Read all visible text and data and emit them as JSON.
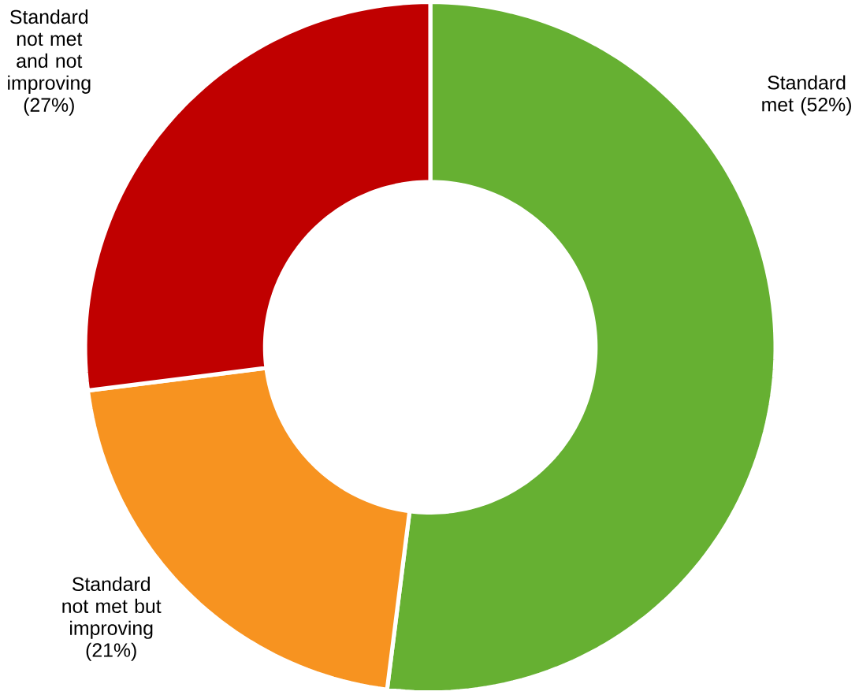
{
  "chart_data": {
    "type": "donut",
    "categories": [
      "Standard met (52%)",
      "Standard not met but improving (21%)",
      "Standard not met and not improving (27%)"
    ],
    "values": [
      52,
      21,
      27
    ],
    "colors": [
      "#66b032",
      "#f79320",
      "#c00000"
    ]
  }
}
